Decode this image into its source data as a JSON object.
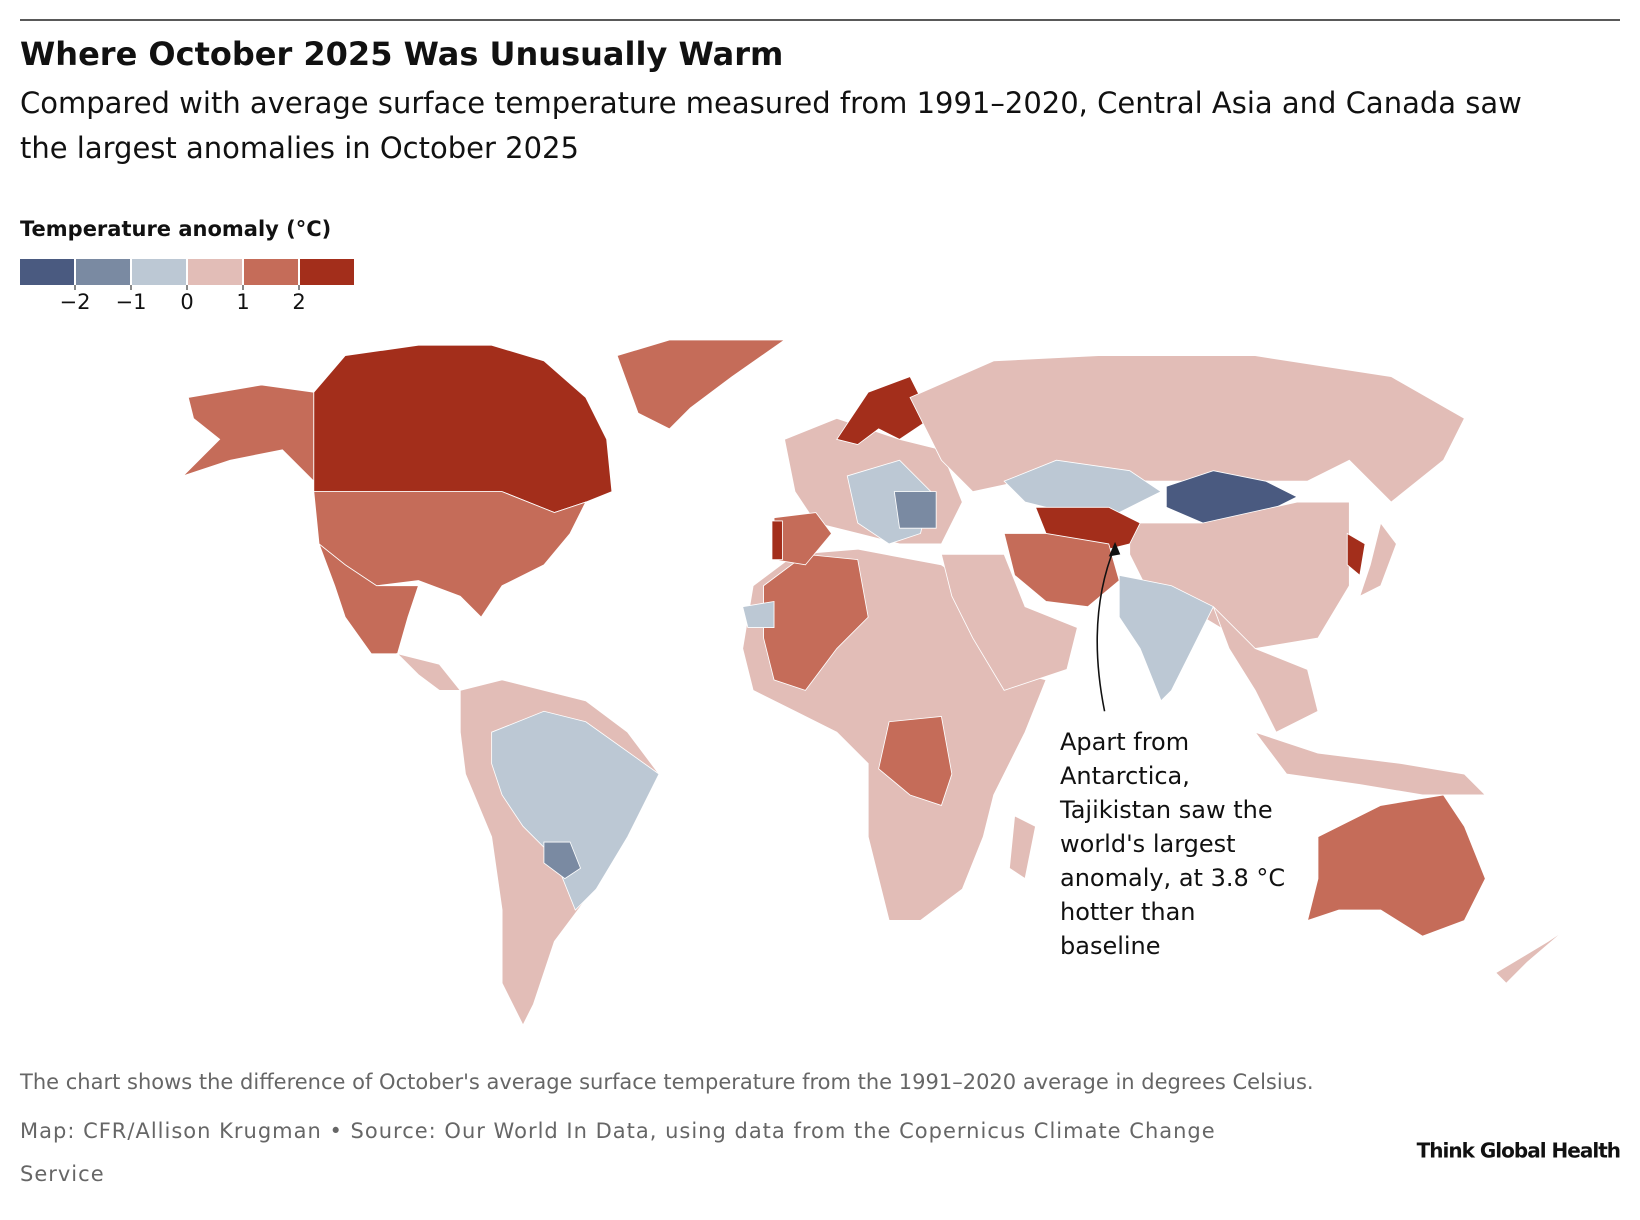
{
  "chart_data": {
    "type": "choropleth",
    "title": "Where October 2025 Was Unusually Warm",
    "subtitle": [
      "Compared with average surface temperature measured from 1991–2020, Central Asia and Canada saw",
      "the largest anomalies in October 2025"
    ],
    "legend_title": "Temperature anomaly (°C)",
    "colors": [
      "#4a5a80",
      "#7a8aa2",
      "#bcc8d4",
      "#e2bdb7",
      "#c56c59",
      "#a32e1b"
    ],
    "ticks": [
      {
        "value": -2,
        "label": "−2"
      },
      {
        "value": -1,
        "label": "−1"
      },
      0,
      1,
      2
    ],
    "annotation": [
      "Apart from",
      "Antarctica,",
      "Tajikistan saw the",
      "world's largest",
      "anomaly, at 3.8 °C",
      "hotter than",
      "baseline"
    ],
    "note": "The chart shows the difference of October's average surface temperature from the 1991–2020 average in degrees Celsius.",
    "source": [
      "Map: CFR/Allison Krugman • Source: Our World In Data, using data from the Copernicus Climate Change",
      "Service"
    ],
    "brand": "Think Global Health"
  }
}
